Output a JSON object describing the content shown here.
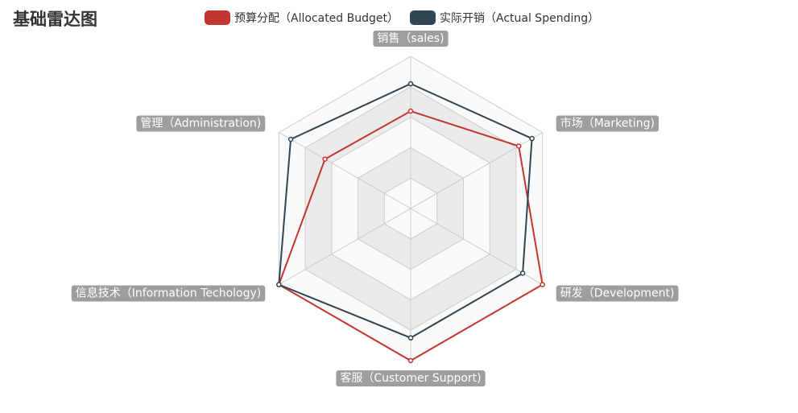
{
  "title": "基础雷达图",
  "chart_data": {
    "type": "radar",
    "title": "基础雷达图",
    "indicators": [
      "销售（sales)",
      "市场（Marketing)",
      "研发（Development)",
      "客服（Customer Support)",
      "信息技术（Information Techology)",
      "管理（Administration)"
    ],
    "max": 1,
    "split_number": 5,
    "series": [
      {
        "name": "预算分配（Allocated Budget）",
        "color": "#c23531",
        "values": [
          0.64,
          0.82,
          1.0,
          1.0,
          1.0,
          0.65
        ]
      },
      {
        "name": "实际开销（Actual Spending）",
        "color": "#2f4554",
        "values": [
          0.82,
          0.92,
          0.85,
          0.85,
          1.0,
          0.91
        ]
      }
    ],
    "legend_position": "top-center",
    "split_area_colors": [
      "#fafafa",
      "#ebebeb"
    ]
  }
}
